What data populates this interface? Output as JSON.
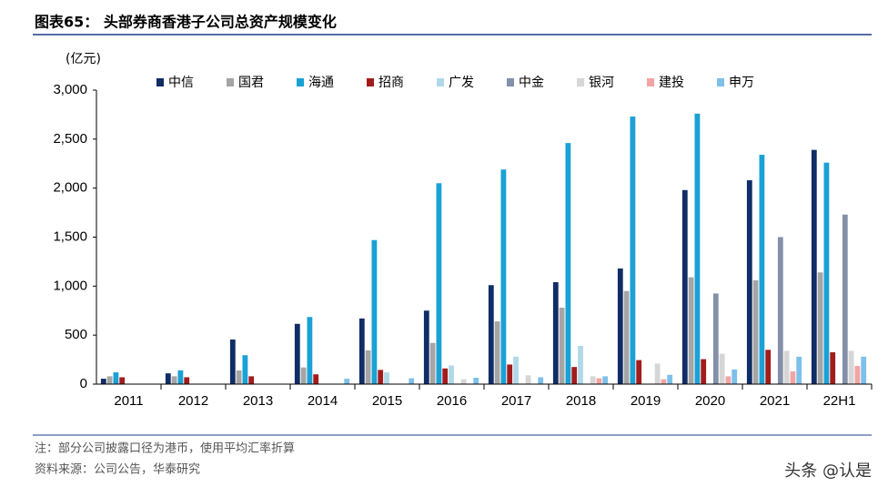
{
  "chart_data": {
    "type": "bar",
    "title": "图表65： 头部券商香港子公司总资产规模变化",
    "y_label": "(亿元)",
    "notes": [
      "注：部分公司披露口径为港币，使用平均汇率折算",
      "资料来源：公司公告，华泰研究"
    ],
    "watermark": "头条 @认是",
    "categories": [
      "2011",
      "2012",
      "2013",
      "2014",
      "2015",
      "2016",
      "2017",
      "2018",
      "2019",
      "2020",
      "2021",
      "22H1"
    ],
    "series": [
      {
        "name": "中信",
        "color": "#0f2d66",
        "values": [
          55,
          110,
          455,
          615,
          670,
          750,
          1010,
          1040,
          1180,
          1980,
          2080,
          2390
        ]
      },
      {
        "name": "国君",
        "color": "#a5a5a5",
        "values": [
          80,
          80,
          140,
          170,
          345,
          420,
          640,
          780,
          950,
          1090,
          1060,
          1140
        ]
      },
      {
        "name": "海通",
        "color": "#1aa1d6",
        "values": [
          120,
          140,
          295,
          685,
          1470,
          2050,
          2190,
          2460,
          2730,
          2760,
          2340,
          2260
        ]
      },
      {
        "name": "招商",
        "color": "#a31c1c",
        "values": [
          70,
          70,
          80,
          100,
          145,
          160,
          200,
          175,
          245,
          255,
          350,
          325
        ]
      },
      {
        "name": "广发",
        "color": "#b0d8e8",
        "values": [
          0,
          0,
          0,
          0,
          120,
          190,
          280,
          390,
          0,
          0,
          0,
          0
        ]
      },
      {
        "name": "中金",
        "color": "#8390a8",
        "values": [
          0,
          0,
          0,
          0,
          0,
          0,
          0,
          0,
          0,
          925,
          1500,
          1730
        ]
      },
      {
        "name": "银河",
        "color": "#d6d6d6",
        "values": [
          0,
          0,
          0,
          0,
          0,
          50,
          90,
          80,
          210,
          310,
          340,
          340
        ]
      },
      {
        "name": "建投",
        "color": "#f2a4a4",
        "values": [
          0,
          0,
          0,
          0,
          0,
          0,
          0,
          60,
          50,
          80,
          130,
          185
        ]
      },
      {
        "name": "申万",
        "color": "#7dc0ea",
        "values": [
          0,
          0,
          0,
          55,
          60,
          65,
          70,
          80,
          95,
          150,
          280,
          280
        ]
      }
    ],
    "ylim": [
      0,
      3000
    ],
    "yticks": [
      0,
      500,
      {
        "value": 1000,
        "label": "1,000"
      },
      {
        "value": 1500,
        "label": "1,500"
      },
      {
        "value": 2000,
        "label": "2,000"
      },
      {
        "value": 2500,
        "label": "2,500"
      },
      {
        "value": 3000,
        "label": "3,000"
      }
    ],
    "grid": false
  }
}
